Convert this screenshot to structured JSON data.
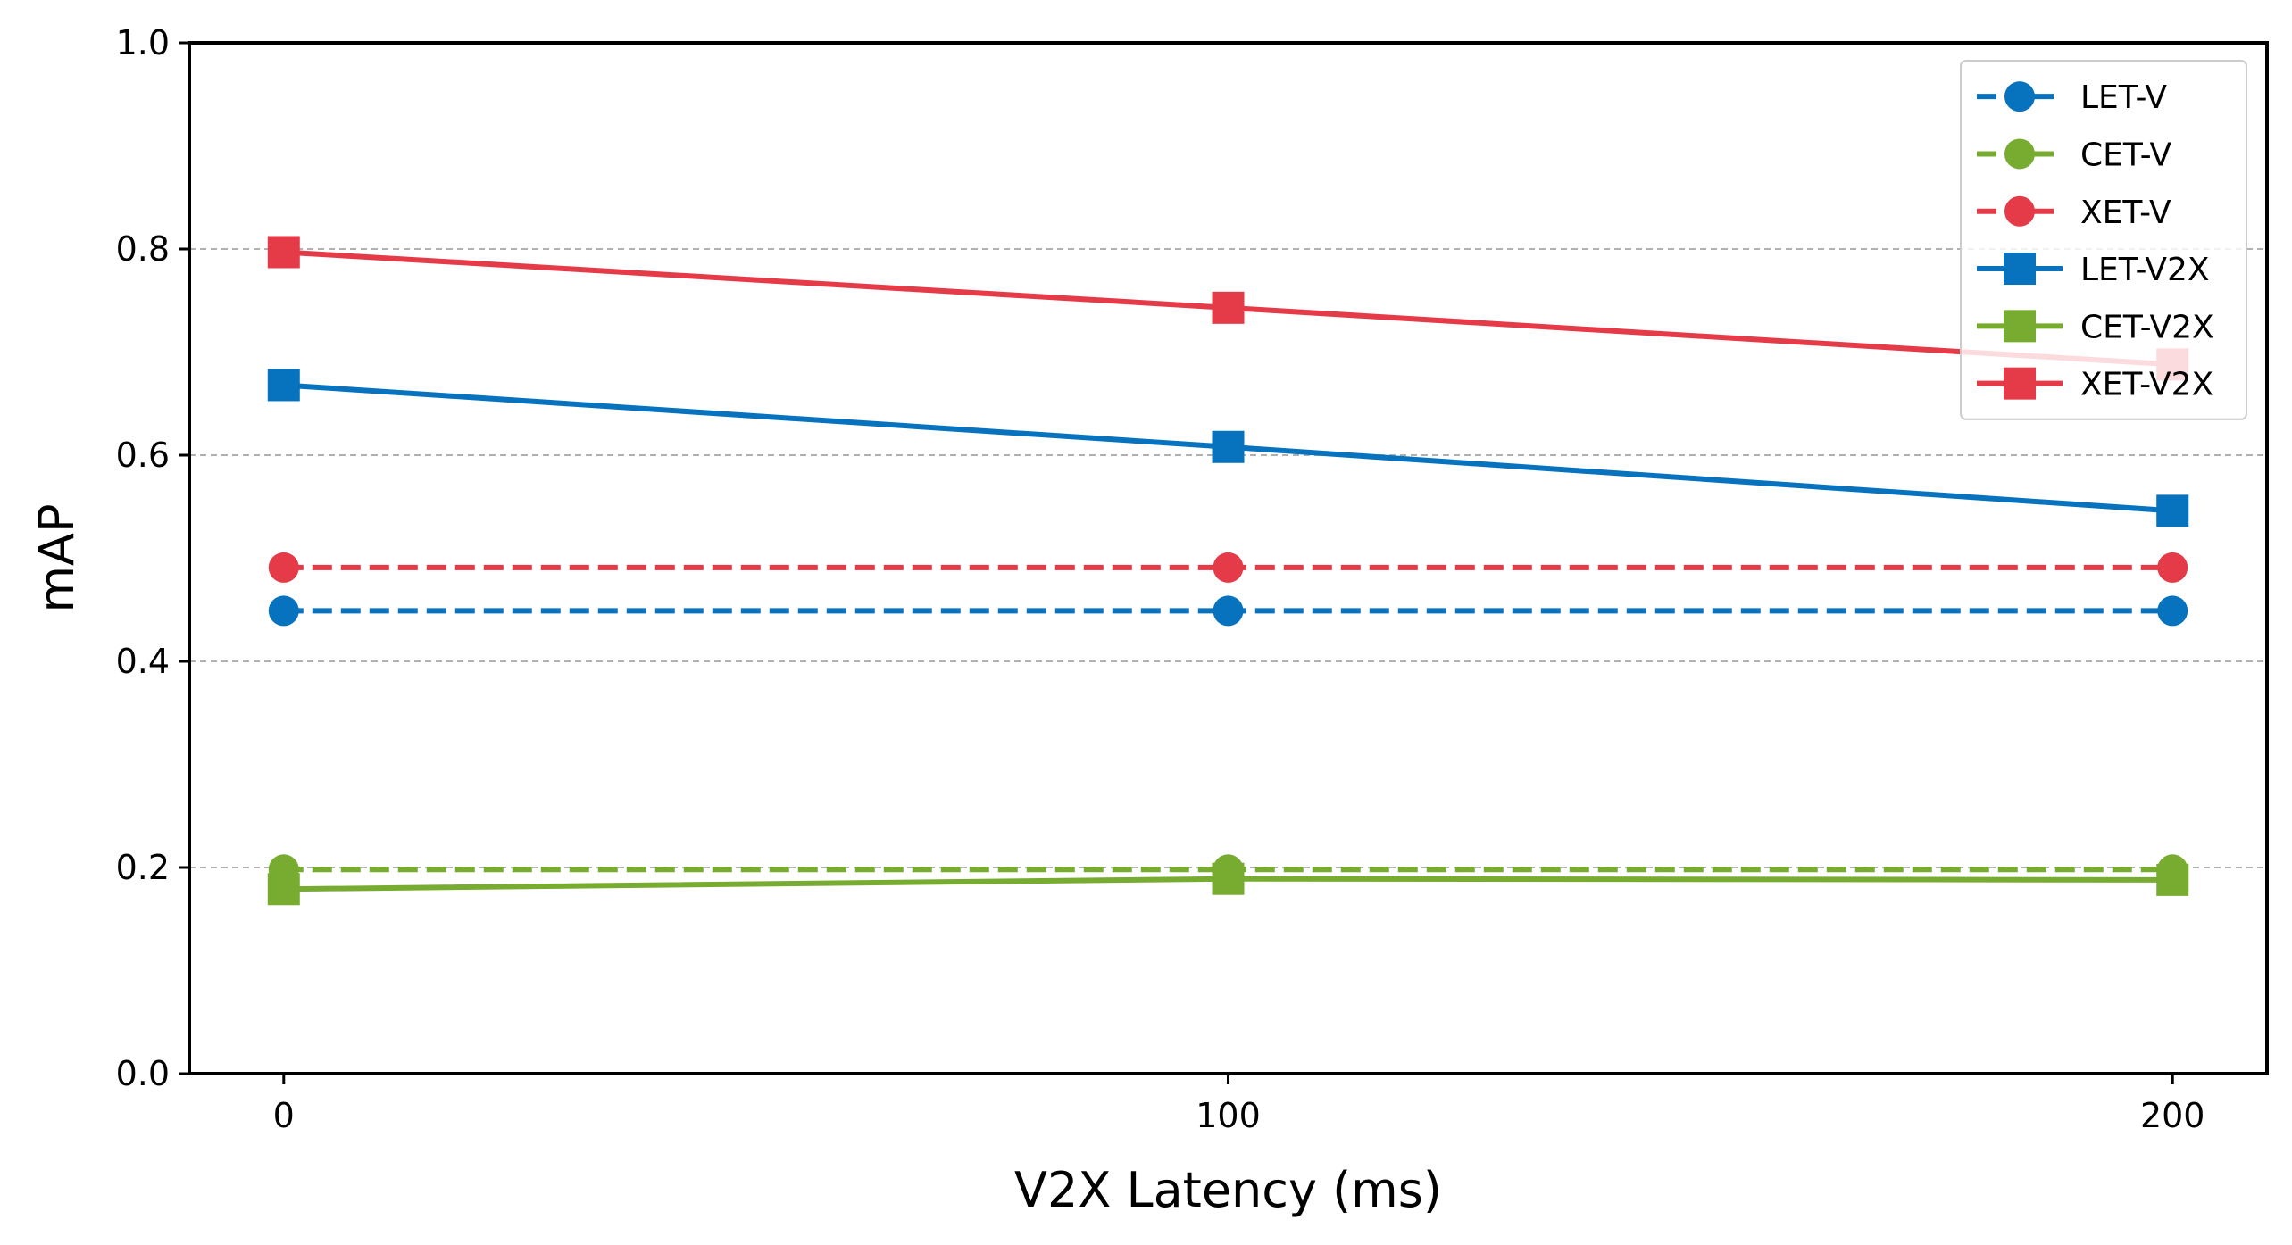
{
  "chart_data": {
    "type": "line",
    "title": "",
    "xlabel": "V2X Latency (ms)",
    "ylabel": "mAP",
    "x": [
      0,
      100,
      200
    ],
    "xticks": [
      "0",
      "100",
      "200"
    ],
    "yticks": [
      "0.0",
      "0.2",
      "0.4",
      "0.6",
      "0.8",
      "1.0"
    ],
    "xlim": [
      -10,
      210
    ],
    "ylim": [
      0,
      1
    ],
    "grid": "y-dashed",
    "legend_position": "top-right",
    "series": [
      {
        "name": "LET-V",
        "values": [
          0.449,
          0.449,
          0.449
        ],
        "color": "#0772be",
        "linestyle": "dashed",
        "marker": "circle"
      },
      {
        "name": "CET-V",
        "values": [
          0.198,
          0.198,
          0.198
        ],
        "color": "#77ac30",
        "linestyle": "dashed",
        "marker": "circle"
      },
      {
        "name": "XET-V",
        "values": [
          0.491,
          0.491,
          0.491
        ],
        "color": "#e53a48",
        "linestyle": "dashed",
        "marker": "circle"
      },
      {
        "name": "LET-V2X",
        "values": [
          0.668,
          0.608,
          0.546
        ],
        "color": "#0772be",
        "linestyle": "solid",
        "marker": "square"
      },
      {
        "name": "CET-V2X",
        "values": [
          0.179,
          0.189,
          0.188
        ],
        "color": "#77ac30",
        "linestyle": "solid",
        "marker": "square"
      },
      {
        "name": "XET-V2X",
        "values": [
          0.797,
          0.743,
          0.688
        ],
        "color": "#e53a48",
        "linestyle": "solid",
        "marker": "square"
      }
    ]
  }
}
